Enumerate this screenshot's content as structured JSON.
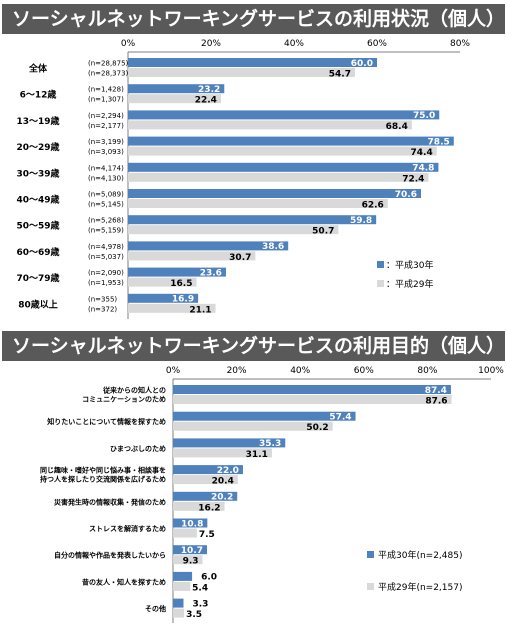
{
  "chart_data": [
    {
      "type": "bar",
      "title": "ソーシャルネットワーキングサービスの利用状況（個人）",
      "xlim": [
        0,
        80
      ],
      "ticks": [
        "0%",
        "20%",
        "40%",
        "60%",
        "80%"
      ],
      "categories": [
        "全体",
        "6～12歳",
        "13～19歳",
        "20～29歳",
        "30～39歳",
        "40～49歳",
        "50～59歳",
        "60～69歳",
        "70～79歳",
        "80歳以上"
      ],
      "n_current": [
        "(n=28,875)",
        "(n=1,428)",
        "(n=2,294)",
        "(n=3,199)",
        "(n=4,174)",
        "(n=5,089)",
        "(n=5,268)",
        "(n=4,978)",
        "(n=2,090)",
        "(n=355)"
      ],
      "n_previous": [
        "(n=28,373)",
        "(n=1,307)",
        "(n=2,177)",
        "(n=3,093)",
        "(n=4,130)",
        "(n=5,145)",
        "(n=5,159)",
        "(n=5,037)",
        "(n=1,953)",
        "(n=372)"
      ],
      "series": [
        {
          "name": "：平成30年",
          "color": "#4f81bd",
          "values": [
            60.0,
            23.2,
            75.0,
            78.5,
            74.8,
            70.6,
            59.8,
            38.6,
            23.6,
            16.9
          ]
        },
        {
          "name": "：平成29年",
          "color": "#d9d9d9",
          "values": [
            54.7,
            22.4,
            68.4,
            74.4,
            72.4,
            62.6,
            50.7,
            30.7,
            16.5,
            21.1
          ]
        }
      ],
      "legend": "bottom-right",
      "grid": false
    },
    {
      "type": "bar",
      "title": "ソーシャルネットワーキングサービスの利用目的（個人）",
      "xlim": [
        0,
        100
      ],
      "ticks": [
        "0%",
        "20%",
        "40%",
        "60%",
        "80%",
        "100%"
      ],
      "categories": [
        [
          "従来からの知人との",
          "コミュニケーションのため"
        ],
        [
          "知りたいことについて情報を探すため"
        ],
        [
          "ひまつぶしのため"
        ],
        [
          "同じ趣味・嗜好や同じ悩み事・相談事を",
          "持つ人を探したり交流関係を広げるため"
        ],
        [
          "災害発生時の情報収集・発信のため"
        ],
        [
          "ストレスを解消するため"
        ],
        [
          "自分の情報や作品を発表したいから"
        ],
        [
          "昔の友人・知人を探すため"
        ],
        [
          "その他"
        ]
      ],
      "series": [
        {
          "name": "平成30年(n=2,485)",
          "color": "#4f81bd",
          "values": [
            87.4,
            57.4,
            35.3,
            22.0,
            20.2,
            10.8,
            10.7,
            6.0,
            3.3
          ]
        },
        {
          "name": "平成29年(n=2,157)",
          "color": "#d9d9d9",
          "values": [
            87.6,
            50.2,
            31.1,
            20.4,
            16.2,
            7.5,
            9.3,
            5.4,
            3.5
          ]
        }
      ],
      "legend": "bottom-right",
      "grid": false
    }
  ]
}
